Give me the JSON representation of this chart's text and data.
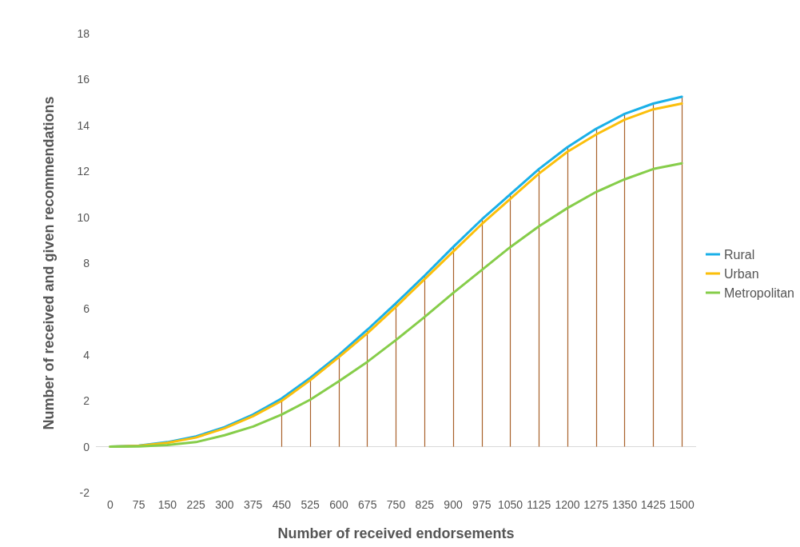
{
  "chart_data": {
    "type": "line",
    "xlabel": "Number of received endorsements",
    "ylabel": "Number of received and given recommendations",
    "categories": [
      "0",
      "75",
      "150",
      "225",
      "300",
      "375",
      "450",
      "525",
      "600",
      "675",
      "750",
      "825",
      "900",
      "975",
      "1050",
      "1125",
      "1200",
      "1275",
      "1350",
      "1425",
      "1500"
    ],
    "series": [
      {
        "name": "Rural",
        "color": "#1ab0e8",
        "values": [
          0,
          0.05,
          0.2,
          0.45,
          0.85,
          1.4,
          2.1,
          3.0,
          4.0,
          5.1,
          6.25,
          7.45,
          8.7,
          9.9,
          11.0,
          12.1,
          13.05,
          13.85,
          14.5,
          14.95,
          15.25
        ]
      },
      {
        "name": "Urban",
        "color": "#fbbf0b",
        "values": [
          0,
          0.04,
          0.17,
          0.4,
          0.8,
          1.33,
          2.0,
          2.9,
          3.9,
          4.95,
          6.1,
          7.3,
          8.5,
          9.7,
          10.8,
          11.9,
          12.85,
          13.6,
          14.25,
          14.7,
          14.95
        ]
      },
      {
        "name": "Metropolitan",
        "color": "#86cd4a",
        "values": [
          0,
          0.01,
          0.07,
          0.2,
          0.5,
          0.88,
          1.4,
          2.05,
          2.85,
          3.7,
          4.65,
          5.65,
          6.7,
          7.7,
          8.7,
          9.6,
          10.4,
          11.1,
          11.65,
          12.1,
          12.35
        ]
      }
    ],
    "ref_lines": [
      {
        "axis": "y",
        "value": 0,
        "color": "#d9d9d9"
      },
      {
        "axis": "x",
        "value": "450",
        "color": "#a8612a"
      },
      {
        "axis": "x",
        "value": "525",
        "color": "#a8612a"
      },
      {
        "axis": "x",
        "value": "600",
        "color": "#a8612a"
      },
      {
        "axis": "x",
        "value": "675",
        "color": "#a8612a"
      },
      {
        "axis": "x",
        "value": "750",
        "color": "#a8612a"
      },
      {
        "axis": "x",
        "value": "825",
        "color": "#a8612a"
      },
      {
        "axis": "x",
        "value": "900",
        "color": "#a8612a"
      },
      {
        "axis": "x",
        "value": "975",
        "color": "#a8612a"
      },
      {
        "axis": "x",
        "value": "1050",
        "color": "#a8612a"
      },
      {
        "axis": "x",
        "value": "1125",
        "color": "#a8612a"
      },
      {
        "axis": "x",
        "value": "1200",
        "color": "#a8612a"
      },
      {
        "axis": "x",
        "value": "1275",
        "color": "#a8612a"
      },
      {
        "axis": "x",
        "value": "1350",
        "color": "#a8612a"
      },
      {
        "axis": "x",
        "value": "1425",
        "color": "#a8612a"
      },
      {
        "axis": "x",
        "value": "1500",
        "color": "#a8612a"
      }
    ],
    "ylim": [
      -2,
      18
    ],
    "yticks": [
      -2,
      0,
      2,
      4,
      6,
      8,
      10,
      12,
      14,
      16,
      18
    ],
    "grid": false,
    "legend": "right",
    "marker": "none",
    "line_style": "solid"
  }
}
